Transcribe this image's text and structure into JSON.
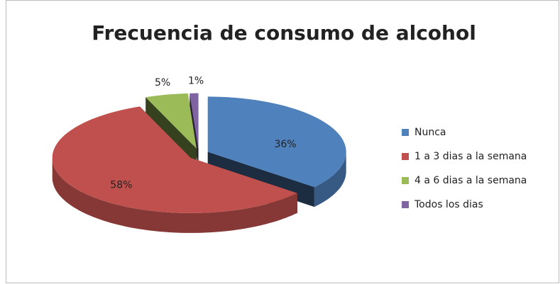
{
  "chart_data": {
    "type": "pie",
    "title": "Frecuencia de consumo de alcohol",
    "categories": [
      "Nunca",
      "1 a 3 dias a la semana",
      "4 a 6 dias a la semana",
      "Todos los dias"
    ],
    "values": [
      36,
      58,
      5,
      1
    ],
    "value_labels": [
      "36%",
      "58%",
      "5%",
      "1%"
    ],
    "colors": [
      "#4f81bd",
      "#c0504d",
      "#9bbb59",
      "#8064a2"
    ],
    "legend": "right"
  }
}
